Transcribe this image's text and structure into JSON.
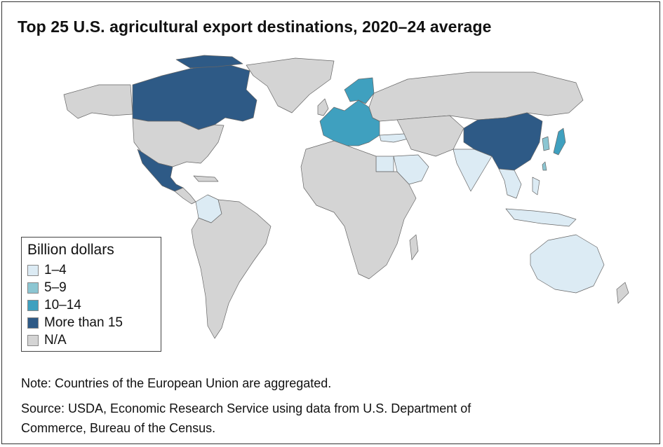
{
  "title": "Top 25 U.S. agricultural export destinations, 2020–24 average",
  "colors": {
    "na": "#d4d4d4",
    "c1_4": "#dcebf4",
    "c5_9": "#8cc6d2",
    "c10_14": "#3fa0bf",
    "c15plus": "#2e5a86",
    "border": "#555555"
  },
  "legend": {
    "title": "Billion dollars",
    "items": [
      {
        "label": "1–4",
        "color": "#dcebf4"
      },
      {
        "label": "5–9",
        "color": "#8cc6d2"
      },
      {
        "label": "10–14",
        "color": "#3fa0bf"
      },
      {
        "label": "More than 15",
        "color": "#2e5a86"
      },
      {
        "label": "N/A",
        "color": "#d4d4d4"
      }
    ]
  },
  "note": "Note: Countries of the European Union are aggregated.",
  "source_line1": "Source: USDA, Economic Research Service using data from U.S. Department of",
  "source_line2": "Commerce, Bureau of the Census."
}
